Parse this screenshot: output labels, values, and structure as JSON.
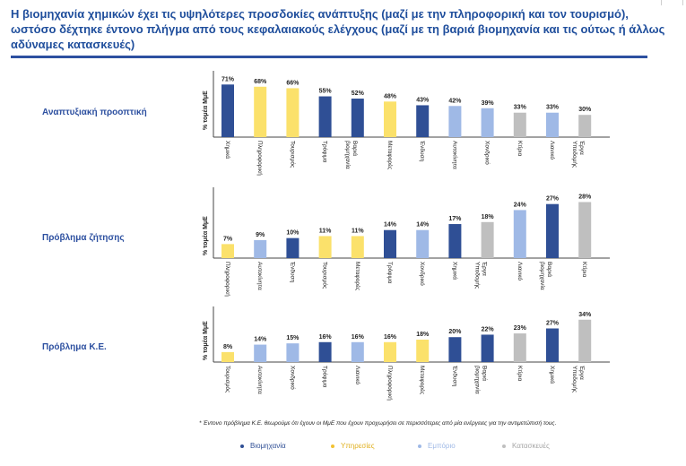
{
  "header": {
    "title": "Η βιομηχανία χημικών έχει τις υψηλότερες προσδοκίες ανάπτυξης (μαζί με την πληροφορική και τον τουρισμό), ωστόσο δέχτηκε έντονο πλήγμα από τους κεφαλαιακούς ελέγχους (μαζί με τη βαριά βιομηχανία και τις ούτως ή άλλως αδύναμες κατασκευές)"
  },
  "colors": {
    "Βιομηχανία": "#2f4f95",
    "Υπηρεσίες": "#fbe16b",
    "Εμπόριο": "#9fb9e6",
    "Κατασκευές": "#bfbfbf"
  },
  "legend": [
    {
      "label": "Βιομηχανία",
      "color": "#2f4f95",
      "text_color": "#2f4f95"
    },
    {
      "label": "Υπηρεσίες",
      "color": "#f2c232",
      "text_color": "#e0b020"
    },
    {
      "label": "Εμπόριο",
      "color": "#9fb9e6",
      "text_color": "#9fb9e6"
    },
    {
      "label": "Κατασκευές",
      "color": "#bfbfbf",
      "text_color": "#a6a6a6"
    }
  ],
  "footnote": "* Έντονο πρόβλημα Κ.Ε. θεωρούμε ότι έχουν οι ΜμΕ που έχουν προχωρήσει σε περισσότερες από μία ενέργειες για την αντιμετώπισή τους.",
  "chart_data": [
    {
      "type": "bar",
      "row_label": "Αναπτυξιακή προοπτική",
      "ylabel": "% τομέα ΜμΕ",
      "ylim": [
        0,
        75
      ],
      "categories": [
        "Χημικά",
        "Πληροφορική",
        "Τουρισμός",
        "Τρόφιμα",
        "Βαριά βιομηχανία",
        "Μεταφορές",
        "Ένδυση",
        "Αυτοκίνητα",
        "Χονδρικό",
        "Κτίρια",
        "Λιανικό",
        "Έργα Υποδομής"
      ],
      "values": [
        71,
        68,
        66,
        55,
        52,
        48,
        43,
        42,
        39,
        33,
        33,
        30
      ],
      "groups": [
        "Βιομηχανία",
        "Υπηρεσίες",
        "Υπηρεσίες",
        "Βιομηχανία",
        "Βιομηχανία",
        "Υπηρεσίες",
        "Βιομηχανία",
        "Εμπόριο",
        "Εμπόριο",
        "Κατασκευές",
        "Εμπόριο",
        "Κατασκευές"
      ],
      "data_labels": [
        "71%",
        "68%",
        "66%",
        "55%",
        "52%",
        "48%",
        "43%",
        "42%",
        "39%",
        "33%",
        "33%",
        "30%"
      ]
    },
    {
      "type": "bar",
      "row_label": "Πρόβλημα ζήτησης",
      "ylabel": "% τομέα ΜμΕ",
      "ylim": [
        0,
        30
      ],
      "categories": [
        "Πληροφορική",
        "Αυτοκίνητα",
        "Ένδυση",
        "Τουρισμός",
        "Μεταφορές",
        "Τρόφιμα",
        "Χονδρικό",
        "Χημικά",
        "Έργα Υποδομής",
        "Λιανικό",
        "Βαριά βιομηχανία",
        "Κτίρια"
      ],
      "values": [
        7,
        9,
        10,
        11,
        11,
        14,
        14,
        17,
        18,
        24,
        27,
        28
      ],
      "groups": [
        "Υπηρεσίες",
        "Εμπόριο",
        "Βιομηχανία",
        "Υπηρεσίες",
        "Υπηρεσίες",
        "Βιομηχανία",
        "Εμπόριο",
        "Βιομηχανία",
        "Κατασκευές",
        "Εμπόριο",
        "Βιομηχανία",
        "Κατασκευές"
      ],
      "data_labels": [
        "7%",
        "9%",
        "10%",
        "11%",
        "11%",
        "14%",
        "14%",
        "17%",
        "18%",
        "24%",
        "27%",
        "28%"
      ]
    },
    {
      "type": "bar",
      "row_label": "Πρόβλημα Κ.Ε.",
      "ylabel": "% τομέα ΜμΕ",
      "ylim": [
        0,
        36
      ],
      "categories": [
        "Τουρισμός",
        "Αυτοκίνητα",
        "Χονδρικό",
        "Τρόφιμα",
        "Λιανικό",
        "Πληροφορική",
        "Μεταφορές",
        "Ένδυση",
        "Βαριά βιομηχανία",
        "Κτίρια",
        "Χημικά",
        "Έργα Υποδομής"
      ],
      "values": [
        8,
        14,
        15,
        16,
        16,
        16,
        18,
        20,
        22,
        23,
        27,
        34
      ],
      "groups": [
        "Υπηρεσίες",
        "Εμπόριο",
        "Εμπόριο",
        "Βιομηχανία",
        "Εμπόριο",
        "Υπηρεσίες",
        "Υπηρεσίες",
        "Βιομηχανία",
        "Βιομηχανία",
        "Κατασκευές",
        "Βιομηχανία",
        "Κατασκευές"
      ],
      "data_labels": [
        "8%",
        "14%",
        "15%",
        "16%",
        "16%",
        "16%",
        "18%",
        "20%",
        "22%",
        "23%",
        "27%",
        "34%"
      ]
    }
  ]
}
